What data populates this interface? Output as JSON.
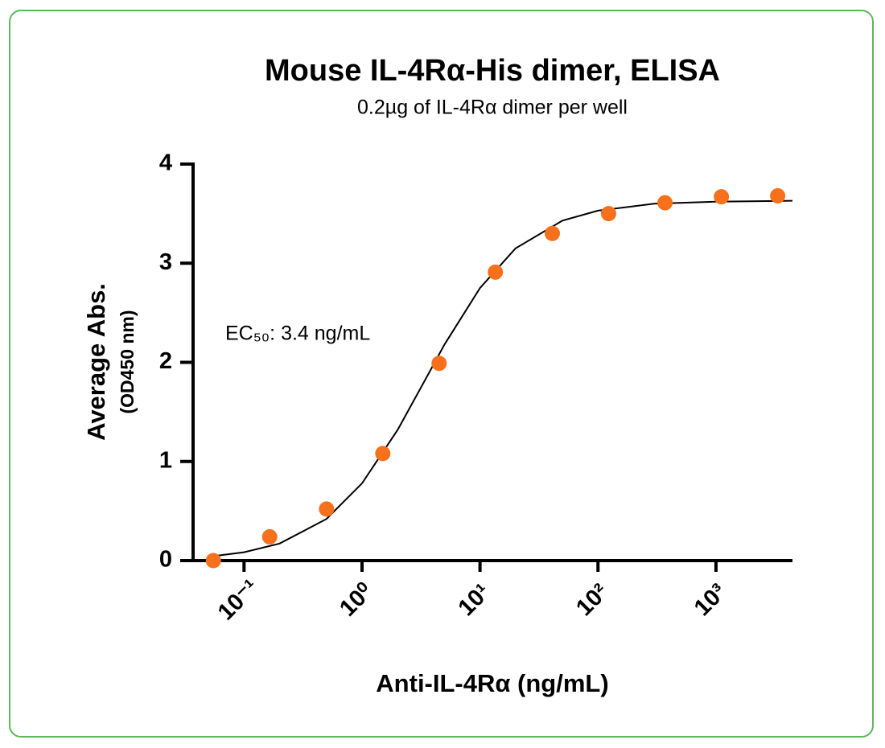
{
  "chart_data": {
    "type": "scatter",
    "title": "Mouse IL-4Rα-His dimer, ELISA",
    "subtitle": "0.2µg of IL-4Rα dimer per well",
    "xlabel": "Anti-IL-4Rα (ng/mL)",
    "ylabel": [
      "Average Abs.",
      "(OD450 nm)"
    ],
    "annotation": "EC₅₀: 3.4 ng/mL",
    "xscale": "log",
    "grid": false,
    "xlim": [
      0.037,
      4450
    ],
    "xticks": [
      {
        "value": 0.1,
        "label": "10⁻¹"
      },
      {
        "value": 1,
        "label": "10⁰"
      },
      {
        "value": 10,
        "label": "10¹"
      },
      {
        "value": 100,
        "label": "10²"
      },
      {
        "value": 1000,
        "label": "10³"
      }
    ],
    "ylim": [
      0,
      4
    ],
    "yticks": [
      0,
      1,
      2,
      3,
      4
    ],
    "points": {
      "color": "#f7701b",
      "x": [
        0.055,
        0.165,
        0.5,
        1.5,
        4.5,
        13.5,
        41,
        123,
        370,
        1111,
        3333
      ],
      "y": [
        0,
        0.24,
        0.52,
        1.08,
        1.99,
        2.91,
        3.3,
        3.5,
        3.61,
        3.67,
        3.68
      ]
    },
    "fit": {
      "color": "#000000",
      "x": [
        0.06,
        0.1,
        0.2,
        0.5,
        1,
        2,
        3.4,
        5,
        10,
        20,
        50,
        100,
        300,
        1000,
        4450
      ],
      "y": [
        0.05,
        0.084,
        0.172,
        0.42,
        0.78,
        1.317,
        1.815,
        2.18,
        2.75,
        3.15,
        3.43,
        3.53,
        3.6,
        3.62,
        3.63
      ]
    }
  }
}
